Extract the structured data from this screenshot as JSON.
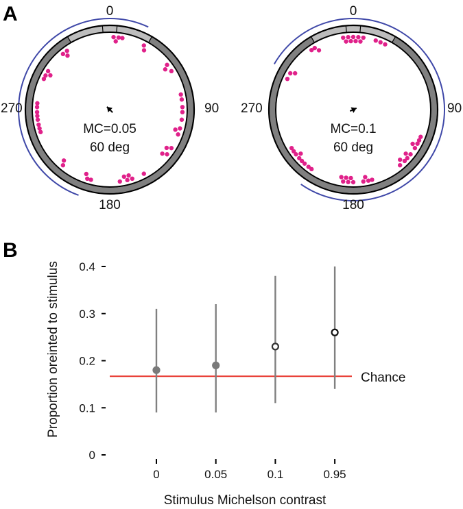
{
  "panels": {
    "a_label": "A",
    "b_label": "B"
  },
  "chart_data": [
    {
      "type": "scatter",
      "coordinate_system": "polar",
      "angle_labels": [
        "0",
        "90",
        "180",
        "270"
      ],
      "center_text": [
        "MC=0.05",
        "60 deg"
      ],
      "mean_vector_angle_deg": 315,
      "mean_vector_relative_length": 0.45,
      "orientation_angles_deg": [
        3,
        5,
        7,
        10,
        28,
        30,
        52,
        54,
        58,
        78,
        82,
        88,
        92,
        98,
        105,
        107,
        110,
        122,
        124,
        128,
        130,
        152,
        162,
        164,
        166,
        168,
        172,
        195,
        198,
        200,
        220,
        222,
        252,
        255,
        258,
        262,
        265,
        268,
        272,
        275,
        295,
        298,
        300,
        302,
        320,
        322,
        324
      ],
      "arc_span_deg": [
        200,
        25
      ],
      "colors": {
        "points": "#e0218a",
        "arc": "#3f48a8",
        "ring": "#808080",
        "ring_highlight": "#bdbdbd"
      }
    },
    {
      "type": "scatter",
      "coordinate_system": "polar",
      "angle_labels": [
        "0",
        "90",
        "180",
        "270"
      ],
      "center_text": [
        "MC=0.1",
        "60 deg"
      ],
      "mean_vector_angle_deg": 65,
      "mean_vector_relative_length": 0.4,
      "orientation_angles_deg": [
        352,
        354,
        356,
        358,
        0,
        2,
        4,
        6,
        8,
        18,
        22,
        26,
        112,
        115,
        118,
        120,
        122,
        128,
        130,
        132,
        135,
        137,
        140,
        165,
        168,
        170,
        172,
        180,
        182,
        184,
        186,
        188,
        190,
        215,
        218,
        222,
        225,
        228,
        230,
        232,
        235,
        238,
        295,
        300,
        302,
        325,
        328,
        330
      ],
      "arc_span_deg": [
        300,
        215
      ],
      "colors": {
        "points": "#e0218a",
        "arc": "#3f48a8",
        "ring": "#808080",
        "ring_highlight": "#bdbdbd"
      }
    },
    {
      "type": "scatter",
      "xlabel": "Stimulus Michelson contrast",
      "ylabel": "Proportion oreinted to stimulus",
      "categories": [
        "0",
        "0.05",
        "0.1",
        "0.95"
      ],
      "values": [
        0.18,
        0.19,
        0.23,
        0.26
      ],
      "ci_low": [
        0.09,
        0.09,
        0.11,
        0.14
      ],
      "ci_high": [
        0.31,
        0.32,
        0.38,
        0.4
      ],
      "marker_fill": [
        "filled",
        "filled",
        "open",
        "open"
      ],
      "ylim": [
        0,
        0.4
      ],
      "yticks": [
        "0",
        "0.1",
        "0.2",
        "0.3",
        "0.4"
      ],
      "chance_level": 0.167,
      "chance_label": "Chance",
      "colors": {
        "chance_line": "#e8352c",
        "ci_line": "#808080",
        "marker_filled": "#7a7a7a",
        "marker_open_stroke": "#333333",
        "marker_open_stroke_dark": "#111111"
      }
    }
  ]
}
